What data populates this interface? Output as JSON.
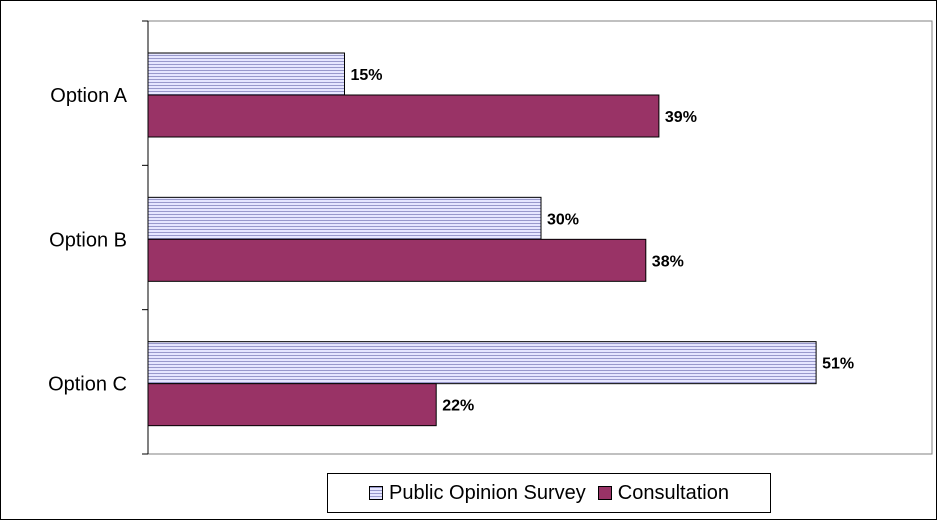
{
  "chart_data": {
    "type": "bar",
    "orientation": "horizontal",
    "categories": [
      "Option A",
      "Option B",
      "Option C"
    ],
    "series": [
      {
        "name": "Public Opinion Survey",
        "values": [
          15,
          30,
          51
        ],
        "labels": [
          "15%",
          "30%",
          "51%"
        ],
        "color": "#e6e6ff",
        "pattern": "horizontal-stripes",
        "stripe_color": "#9999cc"
      },
      {
        "name": "Consultation",
        "values": [
          39,
          38,
          22
        ],
        "labels": [
          "39%",
          "38%",
          "22%"
        ],
        "color": "#993366"
      }
    ],
    "xlim": [
      0,
      60
    ],
    "value_axis_visible": false,
    "grid": false,
    "legend_position": "bottom",
    "unit": "%"
  }
}
